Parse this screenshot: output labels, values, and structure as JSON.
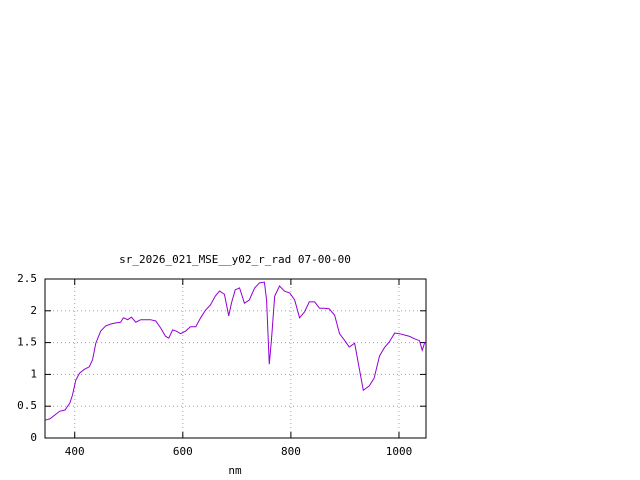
{
  "chart_data": {
    "type": "line",
    "title": "sr_2026_021_MSE__y02_r_rad 07-00-00",
    "x_label": "nm",
    "xlim": [
      345,
      1050
    ],
    "xticks": [
      400,
      600,
      800,
      1000
    ],
    "ylim": [
      0,
      2.5
    ],
    "yticks": [
      0,
      0.5,
      1,
      1.5,
      2,
      2.5
    ],
    "grid": true,
    "series": [
      {
        "color": "#9400d3",
        "x": [
          345,
          354,
          363,
          372,
          382,
          391,
          396,
          402,
          409,
          418,
          427,
          433,
          439,
          448,
          457,
          466,
          476,
          485,
          490,
          498,
          505,
          513,
          522,
          540,
          550,
          559,
          568,
          574,
          581,
          588,
          596,
          605,
          614,
          624,
          633,
          642,
          651,
          660,
          668,
          677,
          685,
          690,
          697,
          705,
          714,
          723,
          733,
          742,
          751,
          755,
          760,
          764,
          770,
          779,
          788,
          798,
          807,
          816,
          825,
          834,
          844,
          853,
          862,
          871,
          881,
          890,
          899,
          908,
          918,
          927,
          934,
          945,
          954,
          964,
          973,
          982,
          992,
          1001,
          1010,
          1019,
          1029,
          1038,
          1043,
          1048
        ],
        "values": [
          0.28,
          0.3,
          0.36,
          0.42,
          0.44,
          0.55,
          0.68,
          0.91,
          1.02,
          1.08,
          1.12,
          1.23,
          1.49,
          1.68,
          1.76,
          1.79,
          1.81,
          1.82,
          1.89,
          1.86,
          1.9,
          1.82,
          1.86,
          1.86,
          1.84,
          1.73,
          1.6,
          1.57,
          1.7,
          1.68,
          1.64,
          1.68,
          1.75,
          1.75,
          1.89,
          2.01,
          2.09,
          2.23,
          2.31,
          2.26,
          1.92,
          2.12,
          2.33,
          2.36,
          2.12,
          2.17,
          2.36,
          2.44,
          2.45,
          2.17,
          1.16,
          1.54,
          2.23,
          2.39,
          2.31,
          2.28,
          2.17,
          1.89,
          1.98,
          2.14,
          2.14,
          2.04,
          2.04,
          2.03,
          1.93,
          1.64,
          1.54,
          1.43,
          1.49,
          1.07,
          0.75,
          0.82,
          0.94,
          1.29,
          1.42,
          1.51,
          1.65,
          1.64,
          1.62,
          1.6,
          1.56,
          1.53,
          1.38,
          1.51
        ]
      }
    ]
  }
}
